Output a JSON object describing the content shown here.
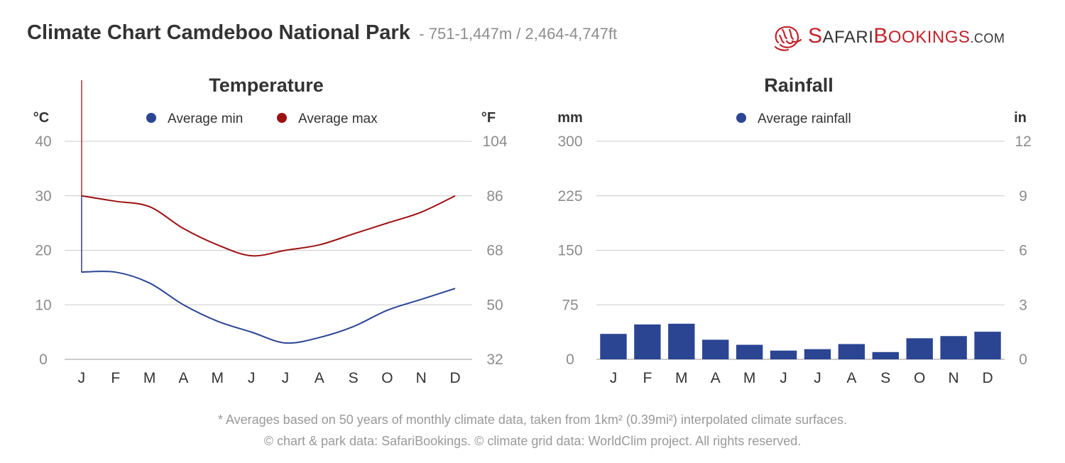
{
  "header": {
    "title": "Climate Chart Camdeboo National Park",
    "subtitle": "- 751-1,447m / 2,464-4,747ft"
  },
  "logo": {
    "brand_part1": "S",
    "brand_part2": "AFARI",
    "brand_part3": "B",
    "brand_part4": "OOKINGS",
    "brand_part5": ".COM"
  },
  "colors": {
    "min": "#2b4593",
    "max": "#9b1111",
    "rain": "#2b4593",
    "grid": "#cccccc",
    "axis": "#999999"
  },
  "chart_data": [
    {
      "type": "line",
      "title": "Temperature",
      "ylabel_left": "°C",
      "ylabel_right": "°F",
      "categories": [
        "J",
        "F",
        "M",
        "A",
        "M",
        "J",
        "J",
        "A",
        "S",
        "O",
        "N",
        "D"
      ],
      "series": [
        {
          "name": "Average min",
          "values": [
            16,
            16,
            14,
            10,
            7,
            5,
            3,
            4,
            6,
            9,
            11,
            13
          ]
        },
        {
          "name": "Average max",
          "values": [
            30,
            29,
            28,
            24,
            21,
            19,
            20,
            21,
            23,
            25,
            27,
            30
          ]
        }
      ],
      "ylim": [
        0,
        40
      ],
      "yticks_left": [
        "0",
        "10",
        "20",
        "30",
        "40"
      ],
      "yticks_right": [
        "32",
        "50",
        "68",
        "86",
        "104"
      ],
      "legend": "top-center"
    },
    {
      "type": "bar",
      "title": "Rainfall",
      "ylabel_left": "mm",
      "ylabel_right": "in",
      "categories": [
        "J",
        "F",
        "M",
        "A",
        "M",
        "J",
        "J",
        "A",
        "S",
        "O",
        "N",
        "D"
      ],
      "series": [
        {
          "name": "Average rainfall",
          "values": [
            35,
            48,
            49,
            27,
            20,
            12,
            14,
            21,
            10,
            29,
            32,
            38
          ]
        }
      ],
      "ylim": [
        0,
        300
      ],
      "yticks_left": [
        "0",
        "75",
        "150",
        "225",
        "300"
      ],
      "yticks_right": [
        "0",
        "3",
        "6",
        "9",
        "12"
      ],
      "legend": "top-center"
    }
  ],
  "footer": {
    "line1": "* Averages based on 50 years of monthly climate data, taken from 1km² (0.39mi²) interpolated climate surfaces.",
    "line2": "© chart & park data: SafariBookings. © climate grid data: WorldClim project. All rights reserved."
  }
}
